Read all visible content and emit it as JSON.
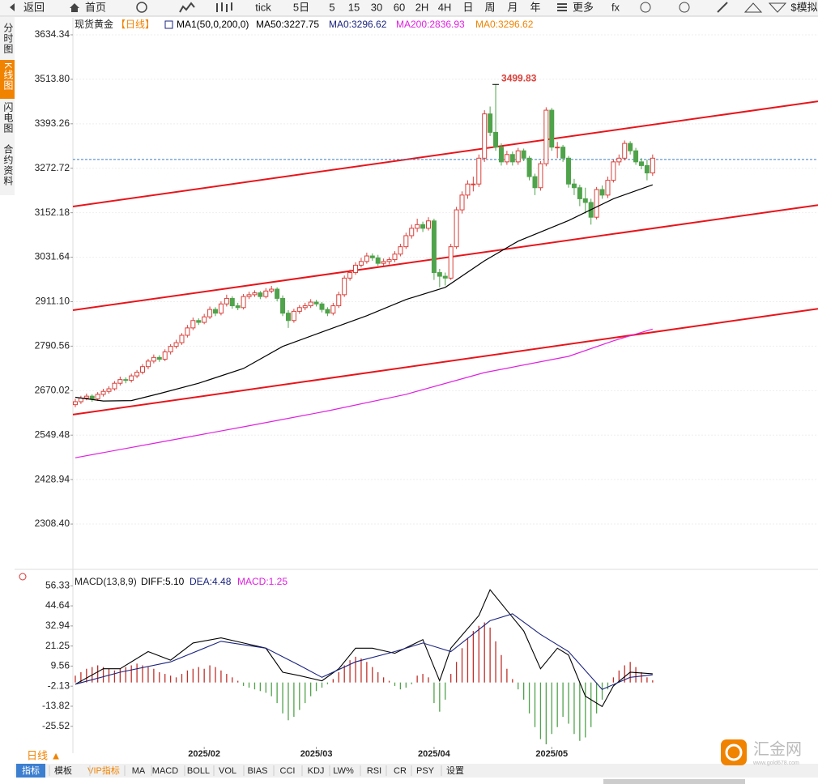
{
  "toolbar": [
    "返回",
    "首页",
    "tick",
    "5日",
    "5",
    "15",
    "30",
    "60",
    "2H",
    "4H",
    "日",
    "周",
    "月",
    "年",
    "更多",
    "fx",
    "$模拟"
  ],
  "sidebar": [
    "分时图",
    "K线图",
    "闪电图",
    "合约资料"
  ],
  "period": "日线 ▲",
  "bottom_tabs": [
    "指标",
    "模板",
    "VIP指标",
    "MA",
    "MACD",
    "BOLL",
    "VOL",
    "BIAS",
    "CCI",
    "KDJ",
    "LW%",
    "RSI",
    "CR",
    "PSY",
    "设置"
  ],
  "watermark": {
    "name": "汇金网",
    "url": "www.gold678.com"
  },
  "chart_data": [
    {
      "type": "candlestick",
      "title": "现货黄金",
      "legend": [
        {
          "text": "【日线】",
          "color": "#f08300"
        },
        {
          "text": "MA1(50,0,200,0)",
          "color": "#000000"
        },
        {
          "text": "MA50:3227.75",
          "color": "#000000"
        },
        {
          "text": "MA0:3296.62",
          "color": "#1a237e"
        },
        {
          "text": "MA200:2836.93",
          "color": "#e020e0"
        },
        {
          "text": "MA0:3296.62",
          "color": "#f08300"
        }
      ],
      "up_color": "#d9403a",
      "down_color": "#4fa34a",
      "xlim": [
        -0.43,
        132.5
      ],
      "ylim": [
        2192.2,
        3680.4
      ],
      "yticks": [
        3634.34,
        {
          "value": 3513.8,
          "label": "3513.80"
        },
        3393.26,
        3272.72,
        3152.18,
        3031.64,
        {
          "value": 2911.1,
          "label": "2911.10"
        },
        2790.56,
        2670.02,
        2549.48,
        2428.94,
        {
          "value": 2308.4,
          "label": "2308.40"
        }
      ],
      "grid": true,
      "candles": [
        [
          2632,
          2648,
          2625,
          2640
        ],
        [
          2640,
          2656,
          2634,
          2650
        ],
        [
          2650,
          2662,
          2644,
          2655
        ],
        [
          2655,
          2660,
          2640,
          2648
        ],
        [
          2648,
          2666,
          2642,
          2660
        ],
        [
          2660,
          2675,
          2654,
          2668
        ],
        [
          2668,
          2682,
          2662,
          2675
        ],
        [
          2675,
          2696,
          2670,
          2690
        ],
        [
          2690,
          2708,
          2684,
          2700
        ],
        [
          2700,
          2706,
          2690,
          2698
        ],
        [
          2698,
          2716,
          2692,
          2710
        ],
        [
          2710,
          2726,
          2704,
          2720
        ],
        [
          2720,
          2742,
          2714,
          2735
        ],
        [
          2735,
          2756,
          2728,
          2750
        ],
        [
          2750,
          2768,
          2744,
          2760
        ],
        [
          2760,
          2766,
          2748,
          2755
        ],
        [
          2755,
          2782,
          2750,
          2775
        ],
        [
          2775,
          2796,
          2768,
          2790
        ],
        [
          2790,
          2808,
          2784,
          2800
        ],
        [
          2800,
          2826,
          2794,
          2820
        ],
        [
          2820,
          2848,
          2814,
          2840
        ],
        [
          2840,
          2868,
          2834,
          2860
        ],
        [
          2860,
          2866,
          2848,
          2855
        ],
        [
          2855,
          2878,
          2850,
          2870
        ],
        [
          2870,
          2898,
          2864,
          2890
        ],
        [
          2890,
          2896,
          2872,
          2880
        ],
        [
          2880,
          2912,
          2874,
          2905
        ],
        [
          2905,
          2930,
          2898,
          2920
        ],
        [
          2920,
          2926,
          2892,
          2900
        ],
        [
          2900,
          2908,
          2888,
          2895
        ],
        [
          2895,
          2932,
          2890,
          2925
        ],
        [
          2925,
          2938,
          2918,
          2930
        ],
        [
          2930,
          2942,
          2924,
          2935
        ],
        [
          2935,
          2940,
          2918,
          2925
        ],
        [
          2925,
          2948,
          2920,
          2940
        ],
        [
          2940,
          2954,
          2934,
          2945
        ],
        [
          2945,
          2950,
          2912,
          2920
        ],
        [
          2920,
          2928,
          2872,
          2880
        ],
        [
          2880,
          2888,
          2840,
          2860
        ],
        [
          2860,
          2892,
          2854,
          2885
        ],
        [
          2885,
          2902,
          2878,
          2895
        ],
        [
          2895,
          2908,
          2888,
          2900
        ],
        [
          2900,
          2918,
          2894,
          2910
        ],
        [
          2910,
          2916,
          2898,
          2905
        ],
        [
          2905,
          2910,
          2882,
          2890
        ],
        [
          2890,
          2896,
          2872,
          2880
        ],
        [
          2880,
          2908,
          2874,
          2900
        ],
        [
          2900,
          2938,
          2894,
          2930
        ],
        [
          2930,
          2982,
          2924,
          2975
        ],
        [
          2975,
          2998,
          2968,
          2990
        ],
        [
          2990,
          3018,
          2984,
          3010
        ],
        [
          3010,
          3030,
          3004,
          3020
        ],
        [
          3020,
          3044,
          3014,
          3035
        ],
        [
          3035,
          3042,
          3022,
          3030
        ],
        [
          3030,
          3038,
          3008,
          3015
        ],
        [
          3015,
          3028,
          3008,
          3020
        ],
        [
          3020,
          3032,
          3012,
          3025
        ],
        [
          3025,
          3048,
          3018,
          3040
        ],
        [
          3040,
          3068,
          3034,
          3060
        ],
        [
          3060,
          3098,
          3054,
          3090
        ],
        [
          3090,
          3120,
          3082,
          3110
        ],
        [
          3110,
          3136,
          3100,
          3120
        ],
        [
          3120,
          3128,
          3100,
          3110
        ],
        [
          3110,
          3140,
          3104,
          3130
        ],
        [
          3130,
          3136,
          2970,
          2990
        ],
        [
          2990,
          3000,
          2950,
          2980
        ],
        [
          2980,
          2990,
          2955,
          2975
        ],
        [
          2975,
          3068,
          2970,
          3060
        ],
        [
          3060,
          3168,
          3054,
          3160
        ],
        [
          3160,
          3210,
          3150,
          3200
        ],
        [
          3200,
          3240,
          3190,
          3230
        ],
        [
          3230,
          3250,
          3210,
          3230
        ],
        [
          3230,
          3310,
          3222,
          3300
        ],
        [
          3300,
          3430,
          3290,
          3420
        ],
        [
          3420,
          3440,
          3360,
          3370
        ],
        [
          3370,
          3499.83,
          3320,
          3330
        ],
        [
          3330,
          3340,
          3280,
          3290
        ],
        [
          3290,
          3320,
          3282,
          3310
        ],
        [
          3310,
          3318,
          3280,
          3290
        ],
        [
          3290,
          3328,
          3282,
          3320
        ],
        [
          3320,
          3326,
          3292,
          3300
        ],
        [
          3300,
          3306,
          3240,
          3250
        ],
        [
          3250,
          3258,
          3200,
          3220
        ],
        [
          3220,
          3292,
          3212,
          3285
        ],
        [
          3285,
          3438,
          3278,
          3430
        ],
        [
          3430,
          3436,
          3320,
          3330
        ],
        [
          3330,
          3344,
          3300,
          3330
        ],
        [
          3330,
          3336,
          3290,
          3300
        ],
        [
          3300,
          3306,
          3220,
          3230
        ],
        [
          3230,
          3244,
          3200,
          3220
        ],
        [
          3220,
          3228,
          3170,
          3190
        ],
        [
          3190,
          3220,
          3150,
          3180
        ],
        [
          3180,
          3190,
          3120,
          3140
        ],
        [
          3140,
          3222,
          3134,
          3215
        ],
        [
          3215,
          3226,
          3190,
          3200
        ],
        [
          3200,
          3250,
          3192,
          3240
        ],
        [
          3240,
          3296,
          3234,
          3290
        ],
        [
          3290,
          3310,
          3280,
          3300
        ],
        [
          3300,
          3348,
          3294,
          3340
        ],
        [
          3340,
          3346,
          3310,
          3320
        ],
        [
          3320,
          3328,
          3282,
          3290
        ],
        [
          3290,
          3300,
          3270,
          3280
        ],
        [
          3280,
          3296,
          3240,
          3260
        ],
        [
          3260,
          3310,
          3252,
          3300
        ]
      ],
      "series": [
        {
          "color": "#000000",
          "x": [
            0,
            5,
            10,
            15,
            22,
            30,
            37,
            44,
            52,
            59,
            66,
            73,
            79,
            88,
            96,
            103
          ],
          "values": [
            2652,
            2642,
            2643,
            2662,
            2690,
            2730,
            2790,
            2829,
            2873,
            2917,
            2950,
            3022,
            3075,
            3131,
            3190,
            3227.75
          ]
        },
        {
          "color": "#e020e0",
          "x": [
            0,
            15,
            30,
            45,
            59,
            73,
            88,
            96,
            103
          ],
          "values": [
            2488,
            2530,
            2572,
            2615,
            2660,
            2719,
            2763,
            2805,
            2836.93
          ]
        }
      ],
      "trendlines": [
        {
          "color": "#e8141a",
          "x": [
            -0.43,
            132.5
          ],
          "values": [
            3169,
            3454
          ]
        },
        {
          "color": "#e8141a",
          "x": [
            -0.43,
            132.5
          ],
          "values": [
            2888,
            3173
          ]
        },
        {
          "color": "#e8141a",
          "x": [
            -0.43,
            132.5
          ],
          "values": [
            2605,
            2892
          ]
        }
      ],
      "price_line": {
        "value": 3296.62,
        "color": "#3a7fc0"
      }
    },
    {
      "type": "macd",
      "title": "MACD(13,8,9)",
      "legend": [
        {
          "text": "DIFF:5.10",
          "color": "#000000"
        },
        {
          "text": "DEA:4.48",
          "color": "#1a237e"
        },
        {
          "text": "MACD:1.25",
          "color": "#e020e0"
        }
      ],
      "xlim": [
        -0.43,
        132.5
      ],
      "ylim": [
        -41.2,
        62.6
      ],
      "yticks": [
        56.33,
        44.64,
        32.94,
        21.25,
        9.56,
        -2.13,
        -13.82,
        -25.52
      ],
      "grid": false,
      "xticks": [
        {
          "value": 23,
          "label": "2025/02"
        },
        {
          "value": 43,
          "label": "2025/03"
        },
        {
          "value": 64,
          "label": "2025/04"
        },
        {
          "value": 85,
          "label": "2025/05"
        }
      ],
      "histogram": {
        "up_color": "#c0302a",
        "down_color": "#4fa34a",
        "values": [
          4,
          6,
          8,
          9,
          10,
          9,
          8,
          7,
          8,
          9,
          10,
          11,
          10,
          9,
          8,
          6,
          5,
          4,
          3,
          5,
          7,
          8,
          9,
          8,
          10,
          9,
          7,
          5,
          3,
          1,
          -2,
          -3,
          -4,
          -5,
          -6,
          -8,
          -12,
          -18,
          -22,
          -20,
          -16,
          -12,
          -8,
          -5,
          -3,
          -1,
          2,
          6,
          10,
          13,
          15,
          14,
          12,
          9,
          6,
          3,
          1,
          -2,
          -4,
          -3,
          -1,
          4,
          5,
          3,
          -12,
          -17,
          -10,
          5,
          12,
          20,
          26,
          30,
          33,
          35,
          32,
          24,
          16,
          8,
          2,
          -4,
          -10,
          -18,
          -26,
          -33,
          -36,
          -30,
          -26,
          -20,
          -24,
          -30,
          -34,
          -32,
          -26,
          -18,
          -10,
          -4,
          3,
          7,
          10,
          12,
          9,
          6,
          3,
          1.25
        ]
      },
      "series": [
        {
          "color": "#000000",
          "x": [
            0,
            5,
            8,
            13,
            17,
            21,
            26,
            30,
            34,
            37,
            40,
            44,
            47,
            50,
            53,
            57,
            62,
            65,
            67,
            72,
            74,
            77,
            80,
            83,
            86,
            88,
            91,
            94,
            96,
            99,
            103
          ],
          "values": [
            -1,
            8,
            8,
            18,
            13,
            23,
            26,
            23,
            20,
            6,
            4,
            1,
            8,
            20,
            20,
            17,
            25,
            1,
            20,
            39,
            54,
            42,
            30,
            8,
            20,
            16,
            -8,
            -14,
            -2,
            6,
            5.1
          ]
        },
        {
          "color": "#1a237e",
          "x": [
            0,
            8,
            17,
            26,
            34,
            40,
            44,
            50,
            57,
            62,
            67,
            74,
            78,
            83,
            88,
            94,
            99,
            103
          ],
          "values": [
            -1,
            6,
            12,
            24,
            20,
            10,
            3,
            12,
            18,
            23,
            18,
            36,
            40,
            28,
            18,
            -4,
            3,
            4.48
          ]
        }
      ]
    }
  ]
}
